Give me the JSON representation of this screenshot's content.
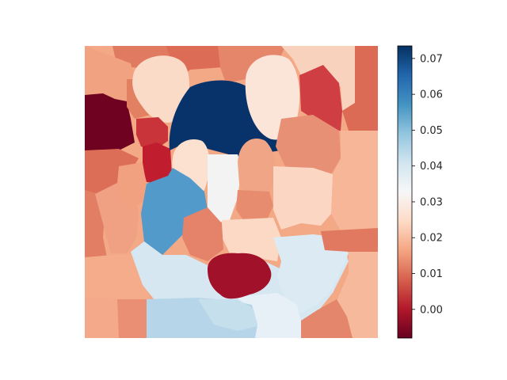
{
  "chart_data": {
    "type": "heatmap",
    "title": "",
    "xlabel": "",
    "ylabel": "",
    "axes_visible": false,
    "colormap": "RdBu",
    "colorbar": {
      "position": "right",
      "range": [
        -0.008,
        0.0735
      ],
      "ticks": [
        0.0,
        0.01,
        0.02,
        0.03,
        0.04,
        0.05,
        0.06,
        0.07
      ],
      "tick_labels": [
        "0.00",
        "0.01",
        "0.02",
        "0.03",
        "0.04",
        "0.05",
        "0.06",
        "0.07"
      ]
    }
  }
}
